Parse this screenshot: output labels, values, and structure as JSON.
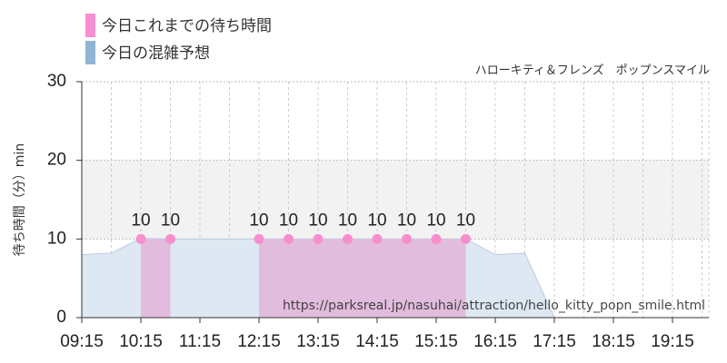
{
  "chart_data": {
    "type": "area",
    "subtitle": "ハローキティ＆フレンズ　ポップンスマイル",
    "y_label": "待ち時間（分）min",
    "annotation": "https://parksreal.jp/nasuhai/attraction/hello_kitty_popn_smile.html",
    "categories": [
      "09:15",
      null,
      "10:15",
      null,
      "11:15",
      null,
      "12:15",
      null,
      "13:15",
      null,
      "14:15",
      null,
      "15:15",
      null,
      "16:15",
      null,
      "17:15",
      null,
      "18:15",
      null,
      "19:15",
      null
    ],
    "series": [
      {
        "name": "今日これまでの待ち時間",
        "color": "#f78fcf",
        "fill": "#e2bcdc",
        "values": [
          null,
          null,
          10,
          10,
          null,
          null,
          10,
          10,
          10,
          10,
          10,
          10,
          10,
          10,
          null,
          null,
          null,
          null,
          null,
          null,
          null,
          null
        ]
      },
      {
        "name": "今日の混雑予想",
        "color": "#8fb4d4",
        "fill": "#dde8f2",
        "values": [
          8,
          8.2,
          10.1,
          10,
          10,
          10,
          10,
          10,
          10,
          10,
          10,
          10,
          10,
          10,
          8,
          8.2,
          0,
          0,
          0,
          0,
          0,
          0
        ]
      }
    ],
    "ylim": [
      0,
      30
    ],
    "yticks": [
      0,
      10,
      20,
      30
    ],
    "shaded_range": [
      10,
      20
    ],
    "grid": true
  }
}
